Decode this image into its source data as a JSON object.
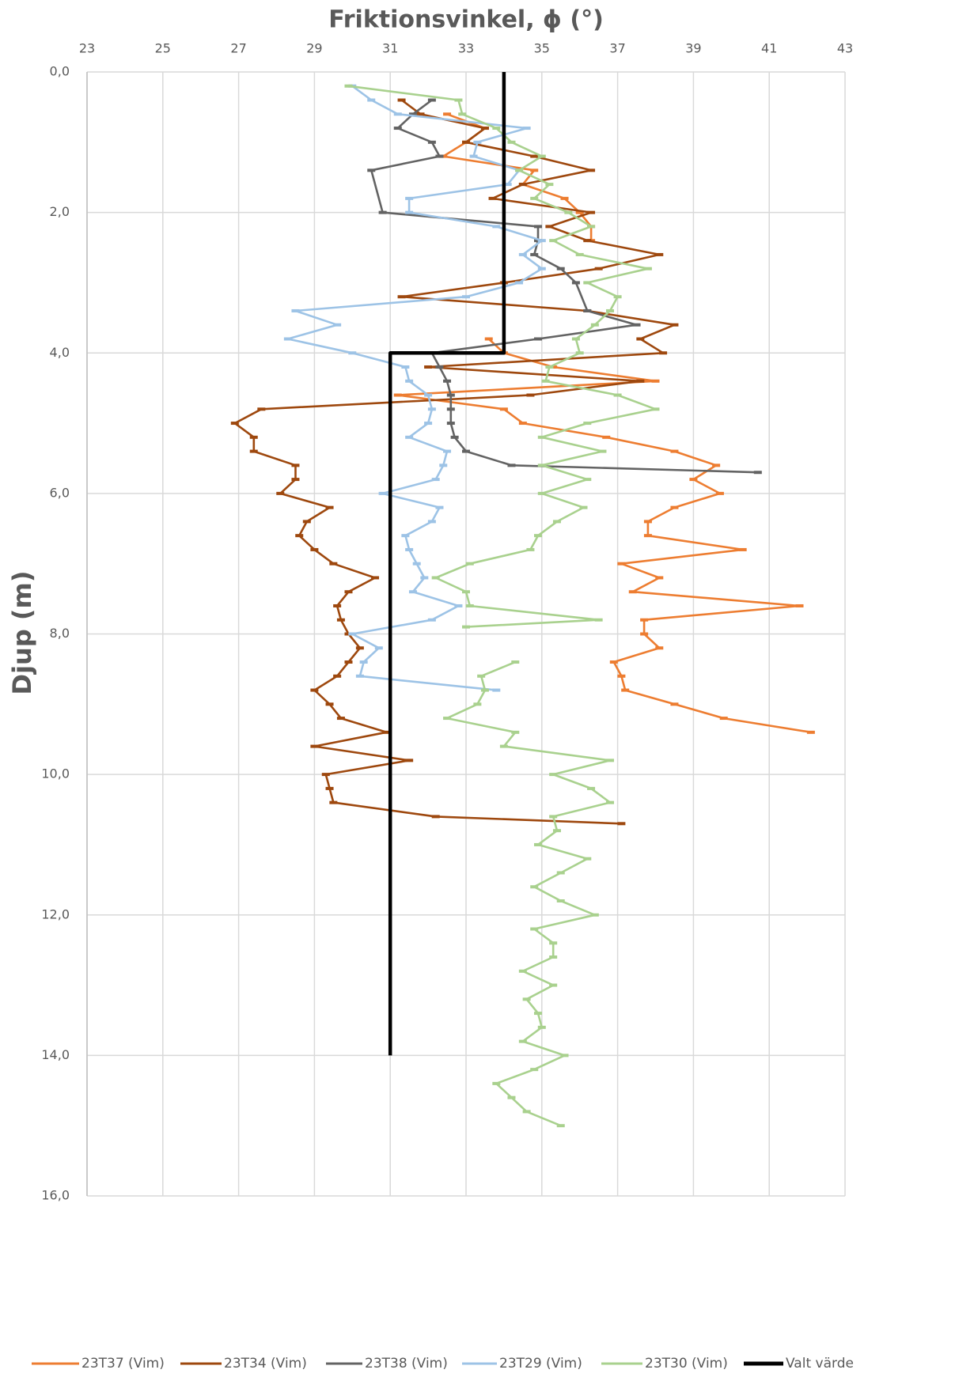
{
  "chart_data": {
    "type": "line",
    "title": "Friktionsvinkel, ϕ  (°)",
    "y_label": "Djup (m)",
    "xlim": [
      23,
      43
    ],
    "xticks": [
      23,
      25,
      27,
      29,
      31,
      33,
      35,
      37,
      39,
      41,
      43
    ],
    "ylim": [
      0,
      16
    ],
    "y_inverted": true,
    "yticks": [
      {
        "value": 0,
        "label": "0,0"
      },
      {
        "value": 2,
        "label": "2,0"
      },
      {
        "value": 4,
        "label": "4,0"
      },
      {
        "value": 6,
        "label": "6,0"
      },
      {
        "value": 8,
        "label": "8,0"
      },
      {
        "value": 10,
        "label": "10,0"
      },
      {
        "value": 12,
        "label": "12,0"
      },
      {
        "value": 14,
        "label": "14,0"
      },
      {
        "value": 16,
        "label": "16,0"
      }
    ],
    "grid": true,
    "legend": "bottom",
    "series": [
      {
        "name": "23T37 (Vim)",
        "color": "#ed7d31",
        "markers": true,
        "y": [
          0.6,
          0.8,
          1.0,
          1.2,
          1.4,
          1.6,
          1.8,
          2.0,
          2.2,
          2.4,
          null,
          3.8,
          4.0,
          4.2,
          4.4,
          4.6,
          4.8,
          5.0,
          5.2,
          5.4,
          5.6,
          5.8,
          6.0,
          6.2,
          6.4,
          6.6,
          6.8,
          7.0,
          7.2,
          7.4,
          7.6,
          7.8,
          8.0,
          8.2,
          8.4,
          8.6,
          8.8,
          9.0,
          9.2,
          9.4
        ],
        "x": [
          32.5,
          33.5,
          33.0,
          32.4,
          34.8,
          34.5,
          35.6,
          36.0,
          36.3,
          36.3,
          null,
          33.6,
          34.0,
          35.3,
          38.0,
          31.2,
          34.0,
          34.5,
          36.7,
          38.5,
          39.6,
          39.0,
          39.7,
          38.5,
          37.8,
          37.8,
          40.3,
          37.1,
          38.1,
          37.4,
          41.8,
          37.7,
          37.7,
          38.1,
          36.9,
          37.1,
          37.2,
          38.5,
          39.8,
          42.1
        ]
      },
      {
        "name": "23T34 (Vim)",
        "color": "#9e480e",
        "markers": true,
        "y": [
          0.4,
          0.6,
          0.8,
          1.0,
          1.2,
          1.4,
          1.6,
          1.8,
          2.0,
          2.2,
          2.4,
          2.6,
          2.8,
          3.0,
          3.2,
          3.4,
          3.6,
          3.8,
          4.0,
          4.2,
          4.4,
          4.6,
          4.8,
          5.0,
          5.2,
          5.4,
          5.6,
          5.8,
          6.0,
          6.2,
          6.4,
          6.6,
          6.8,
          7.0,
          7.2,
          7.4,
          7.6,
          7.8,
          8.0,
          8.2,
          8.4,
          8.6,
          8.8,
          9.0,
          9.2,
          9.4,
          9.6,
          9.8,
          10.0,
          10.2,
          10.4,
          10.6,
          10.7
        ],
        "x": [
          31.3,
          31.8,
          33.5,
          33.0,
          34.8,
          36.3,
          34.5,
          33.7,
          36.3,
          35.2,
          36.2,
          38.1,
          36.5,
          34.0,
          31.3,
          36.2,
          38.5,
          37.6,
          38.2,
          32.0,
          37.6,
          34.7,
          27.6,
          26.9,
          27.4,
          27.4,
          28.5,
          28.5,
          28.1,
          29.4,
          28.8,
          28.6,
          29.0,
          29.5,
          30.6,
          29.9,
          29.6,
          29.7,
          29.9,
          30.2,
          29.9,
          29.6,
          29.0,
          29.4,
          29.7,
          30.9,
          29.0,
          31.5,
          29.3,
          29.4,
          29.5,
          32.2,
          37.1
        ]
      },
      {
        "name": "23T38 (Vim)",
        "color": "#636363",
        "markers": true,
        "y": [
          0.4,
          0.6,
          0.8,
          1.0,
          1.2,
          1.4,
          2.0,
          2.2,
          2.4,
          2.6,
          2.8,
          3.0,
          3.4,
          3.6,
          3.8,
          4.0,
          4.2,
          4.4,
          4.6,
          4.8,
          5.0,
          5.2,
          5.4,
          5.6,
          5.7
        ],
        "x": [
          32.1,
          31.6,
          31.2,
          32.1,
          32.3,
          30.5,
          30.8,
          34.9,
          34.9,
          34.8,
          35.5,
          35.9,
          36.2,
          37.5,
          34.9,
          32.1,
          32.3,
          32.5,
          32.6,
          32.6,
          32.6,
          32.7,
          33.0,
          34.2,
          40.7
        ]
      },
      {
        "name": "23T29 (Vim)",
        "color": "#9dc3e6",
        "markers": true,
        "y": [
          0.2,
          0.4,
          0.6,
          0.8,
          1.0,
          1.2,
          1.4,
          1.6,
          1.8,
          2.0,
          2.2,
          2.4,
          2.6,
          2.8,
          3.0,
          3.2,
          3.4,
          3.6,
          3.8,
          4.0,
          4.2,
          4.4,
          4.6,
          4.8,
          5.0,
          5.2,
          5.4,
          5.6,
          5.8,
          6.0,
          6.2,
          6.4,
          6.6,
          6.8,
          7.0,
          7.2,
          7.4,
          7.6,
          7.8,
          8.0,
          8.2,
          8.4,
          8.6,
          8.8
        ],
        "x": [
          30.0,
          30.5,
          31.2,
          34.6,
          33.3,
          33.2,
          34.4,
          34.1,
          31.5,
          31.5,
          33.8,
          35.0,
          34.5,
          35.0,
          34.4,
          33.0,
          28.5,
          29.6,
          28.3,
          30.0,
          31.4,
          31.5,
          32.0,
          32.1,
          32.0,
          31.5,
          32.5,
          32.4,
          32.2,
          30.8,
          32.3,
          32.1,
          31.4,
          31.5,
          31.7,
          31.9,
          31.6,
          32.8,
          32.1,
          30.0,
          30.7,
          30.3,
          30.2,
          33.8
        ]
      },
      {
        "name": "23T30 (Vim)",
        "color": "#a9d18e",
        "markers": true,
        "y": [
          0.2,
          0.4,
          0.6,
          0.8,
          1.0,
          1.2,
          1.4,
          1.6,
          1.8,
          2.0,
          2.2,
          2.4,
          2.6,
          2.8,
          3.0,
          3.2,
          3.4,
          3.6,
          3.8,
          4.0,
          4.2,
          4.4,
          4.6,
          4.8,
          5.0,
          5.2,
          5.4,
          5.6,
          5.8,
          6.0,
          6.2,
          6.4,
          6.6,
          6.8,
          7.0,
          7.2,
          7.4,
          7.6,
          7.8,
          7.9,
          null,
          8.4,
          8.6,
          8.8,
          9.0,
          9.2,
          9.4,
          9.6,
          9.8,
          10.0,
          10.2,
          10.4,
          10.6,
          10.8,
          11.0,
          11.2,
          11.4,
          11.6,
          11.8,
          12.0,
          12.2,
          12.4,
          12.6,
          12.8,
          13.0,
          13.2,
          13.4,
          13.6,
          13.8,
          14.0,
          14.2,
          14.4,
          14.6,
          14.8,
          15.0
        ],
        "x": [
          29.9,
          32.8,
          32.9,
          33.8,
          34.2,
          35.0,
          34.4,
          35.2,
          34.8,
          35.7,
          36.3,
          35.3,
          36.0,
          37.8,
          36.2,
          37.0,
          36.8,
          36.4,
          35.9,
          36.0,
          35.2,
          35.1,
          37.0,
          38.0,
          36.2,
          35.0,
          36.6,
          35.0,
          36.2,
          35.0,
          36.1,
          35.4,
          34.9,
          34.7,
          33.1,
          32.2,
          33.0,
          33.1,
          36.5,
          33.0,
          null,
          34.3,
          33.4,
          33.5,
          33.3,
          32.5,
          34.3,
          34.0,
          36.8,
          35.3,
          36.3,
          36.8,
          35.3,
          35.4,
          34.9,
          36.2,
          35.5,
          34.8,
          35.5,
          36.4,
          34.8,
          35.3,
          35.3,
          34.5,
          35.3,
          34.6,
          34.9,
          35.0,
          34.5,
          35.6,
          34.8,
          33.8,
          34.2,
          34.6,
          35.5
        ]
      },
      {
        "name": "Valt värde",
        "color": "#000000",
        "markers": false,
        "y": [
          0,
          4,
          4,
          14
        ],
        "x": [
          34,
          34,
          31,
          31
        ]
      }
    ]
  }
}
